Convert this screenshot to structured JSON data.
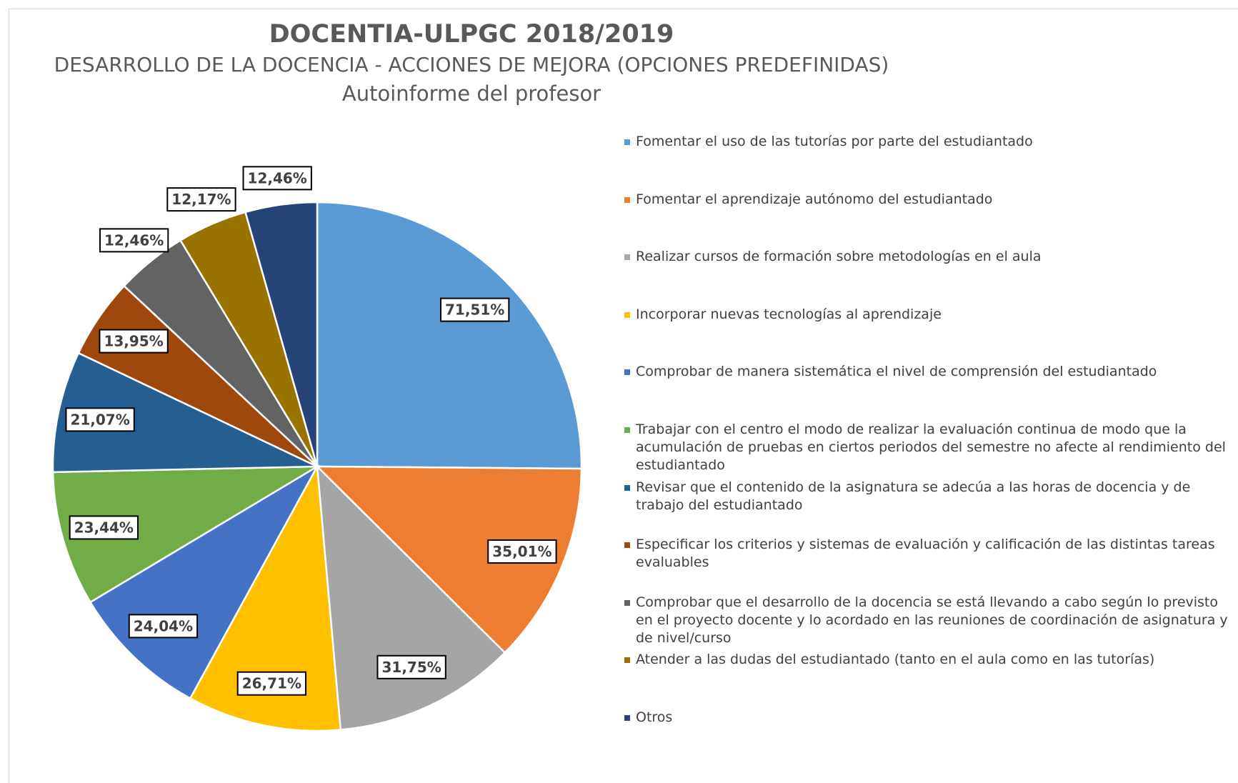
{
  "chart_data": {
    "type": "pie",
    "title": "DOCENTIA-ULPGC 2018/2019",
    "subtitle": "DESARROLLO DE LA DOCENCIA - ACCIONES DE MEJORA (OPCIONES PREDEFINIDAS)",
    "subtitle2": "Autoinforme del profesor",
    "categories": [
      "Fomentar el uso de las tutorías por parte del estudiantado",
      "Fomentar el aprendizaje autónomo del estudiantado",
      "Realizar cursos de formación sobre metodologías en el aula",
      "Incorporar nuevas tecnologías al aprendizaje",
      "Comprobar de manera sistemática el nivel de comprensión del estudiantado",
      "Trabajar con el centro el modo de realizar la evaluación continua de modo que la acumulación de pruebas en ciertos periodos del semestre no afecte al rendimiento del estudiantado",
      "Revisar que el contenido de la asignatura se adecúa a las horas de docencia y de trabajo del estudiantado",
      "Especificar los criterios y sistemas de evaluación y calificación de las distintas tareas evaluables",
      "Comprobar que el desarrollo de la docencia se está llevando a cabo según lo previsto en el proyecto docente y lo acordado en las reuniones de coordinación de asignatura y de nivel/curso",
      "Atender a las dudas del estudiantado (tanto en el aula como en las tutorías)",
      "Otros"
    ],
    "values": [
      71.51,
      35.01,
      31.75,
      26.71,
      24.04,
      23.44,
      21.07,
      13.95,
      12.46,
      12.17,
      12.46
    ],
    "value_labels": [
      "71,51%",
      "35,01%",
      "31,75%",
      "26,71%",
      "24,04%",
      "23,44%",
      "21,07%",
      "13,95%",
      "12,46%",
      "12,17%",
      "12,46%"
    ],
    "colors": [
      "#5b9bd5",
      "#ed7d31",
      "#a5a5a5",
      "#ffc000",
      "#4472c4",
      "#70ad47",
      "#255e91",
      "#9e480e",
      "#636363",
      "#997300",
      "#264478"
    ],
    "legend": "right"
  }
}
